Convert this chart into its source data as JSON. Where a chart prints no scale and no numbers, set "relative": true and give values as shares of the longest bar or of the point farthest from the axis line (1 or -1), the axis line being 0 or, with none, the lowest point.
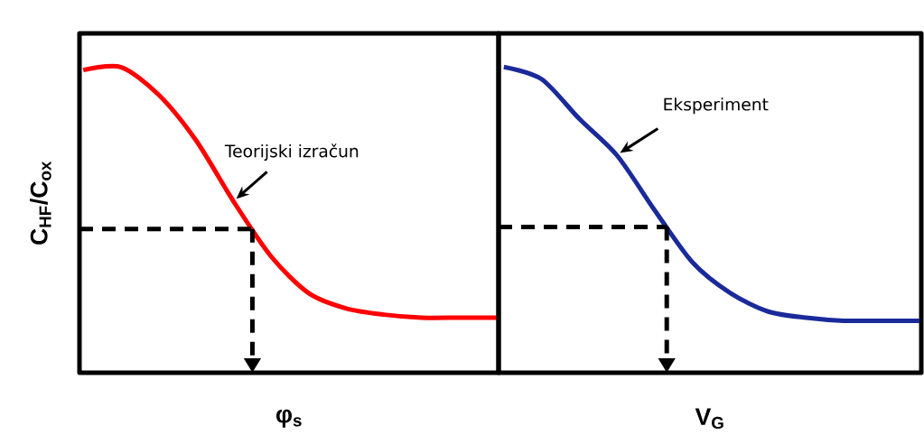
{
  "chart_data": [
    {
      "type": "line",
      "relative": true,
      "ylabel": "C$_{HF}$/C$_{ox}$",
      "xlabel": "φ$_{s}$",
      "categories": [
        null,
        null,
        null,
        null,
        null,
        null,
        null,
        null,
        null,
        null,
        null,
        null
      ],
      "series": [
        {
          "color": "#ff0000",
          "values": [
            0.99,
            1,
            0.91,
            0.76,
            0.56,
            0.38,
            0.26,
            0.21,
            0.19,
            0.18,
            0.18,
            0.18
          ]
        }
      ],
      "ref_lines": [
        {
          "axis": "y",
          "value": 0.47,
          "line_style": "dashed",
          "color": "#000000"
        }
      ],
      "annotations": [
        "Teorijski izračun"
      ]
    },
    {
      "type": "line",
      "relative": true,
      "xlabel": "V$_{G}$",
      "categories": [
        null,
        null,
        null,
        null,
        null,
        null,
        null,
        null,
        null,
        null,
        null,
        null
      ],
      "series": [
        {
          "color": "#1a2a9a",
          "values": [
            1,
            0.96,
            0.83,
            0.71,
            0.53,
            0.36,
            0.26,
            0.2,
            0.18,
            0.17,
            0.17,
            0.17
          ]
        }
      ],
      "ref_lines": [
        {
          "axis": "y",
          "value": 0.477,
          "line_style": "dashed",
          "color": "#000000"
        }
      ],
      "annotations": [
        "Eksperiment"
      ]
    }
  ]
}
